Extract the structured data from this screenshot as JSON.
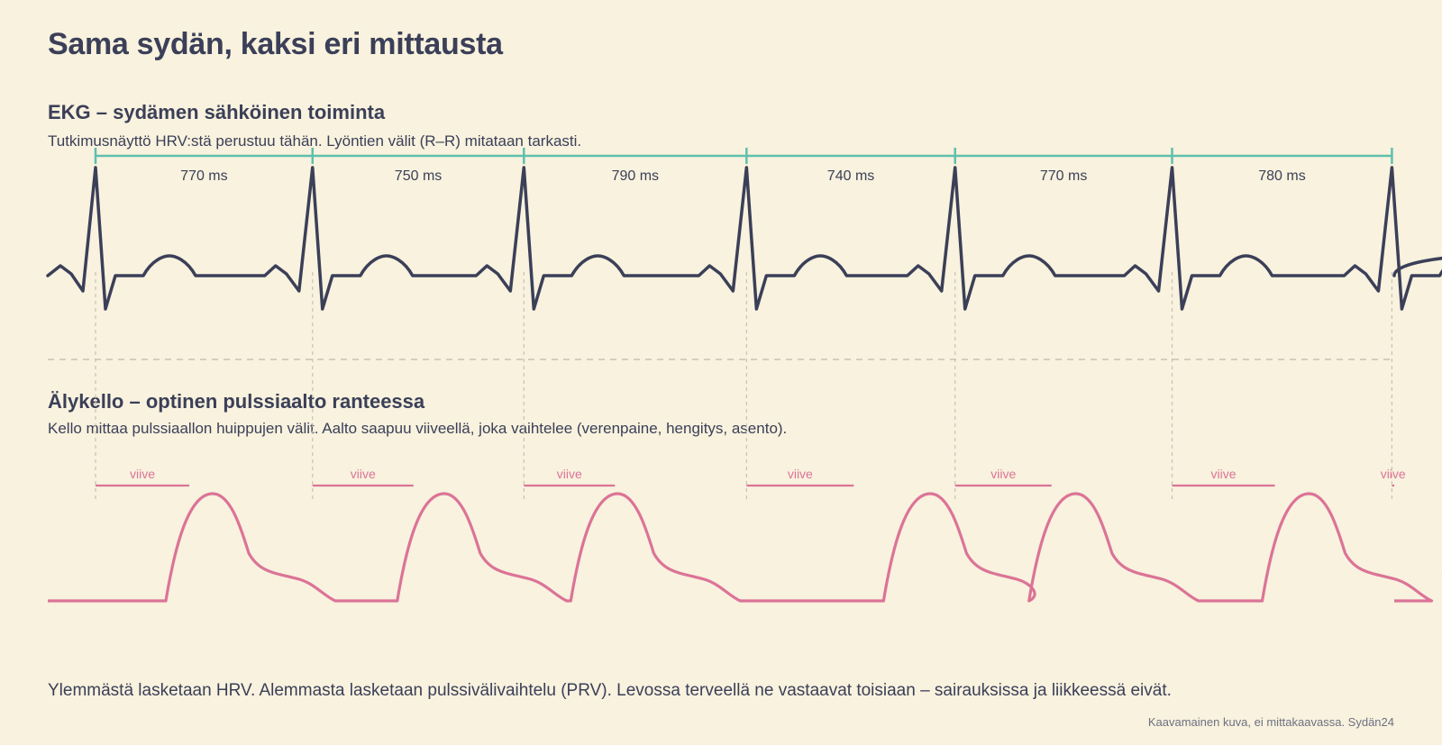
{
  "title": "Sama sydän, kaksi eri mittausta",
  "ekg": {
    "title": "EKG – sydämen sähköinen toiminta",
    "description": "Tutkimusnäyttö HRV:stä perustuu tähän. Lyöntien välit (R–R) mitataan tarkasti.",
    "rr_intervals_ms": [
      770,
      750,
      790,
      740,
      770,
      780
    ],
    "interval_labels": [
      "770 ms",
      "750 ms",
      "790 ms",
      "740 ms",
      "770 ms",
      "780 ms"
    ]
  },
  "ppg": {
    "title": "Älykello – optinen pulssiaalto ranteessa",
    "description": "Kello mittaa pulssiaallon huippujen välit. Aalto saapuu viiveellä, joka vaihtelee (verenpaine, hengitys, asento).",
    "delay_label": "viive"
  },
  "footer": "Ylemmästä lasketaan HRV. Alemmasta lasketaan pulssivälivaihtelu (PRV). Levossa terveellä ne vastaavat toisiaan – sairauksissa ja liikkeessä eivät.",
  "credit": "Kaavamainen kuva, ei mittakaavassa. Sydän24",
  "colors": {
    "background": "#f8f2de",
    "text": "#3b3f58",
    "ekg_trace": "#3b3f58",
    "interval_bracket": "#5fbfae",
    "pulse_wave": "#dc7397",
    "guide": "#c8c2b3"
  }
}
